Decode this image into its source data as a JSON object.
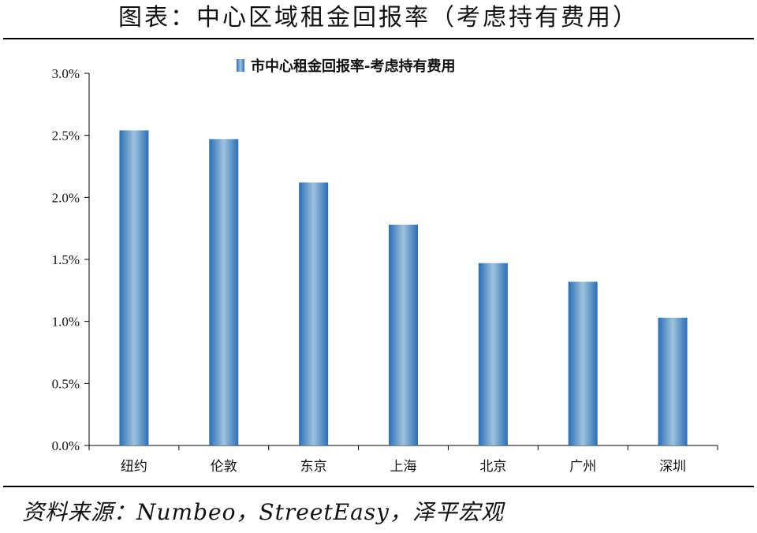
{
  "page": {
    "title": "图表：中心区域租金回报率（考虑持有费用）",
    "source": "资料来源：Numbeo，StreetEasy，泽平宏观"
  },
  "colors": {
    "bar_edge": "#2a6fb5",
    "bar_center": "#9ec2de",
    "axis": "#000000"
  },
  "chart_data": {
    "type": "bar",
    "categories": [
      "纽约",
      "伦敦",
      "东京",
      "上海",
      "北京",
      "广州",
      "深圳"
    ],
    "series": [
      {
        "name": "市中心租金回报率-考虑持有费用",
        "values": [
          2.54,
          2.47,
          2.12,
          1.78,
          1.47,
          1.32,
          1.03
        ]
      }
    ],
    "ylim": [
      0,
      3.0
    ],
    "yticks": [
      0,
      0.5,
      1.0,
      1.5,
      2.0,
      2.5,
      3.0
    ],
    "ytick_labels": [
      "0.0%",
      "0.5%",
      "1.0%",
      "1.5%",
      "2.0%",
      "2.5%",
      "3.0%"
    ],
    "grid": false,
    "legend_position": "top-center"
  }
}
